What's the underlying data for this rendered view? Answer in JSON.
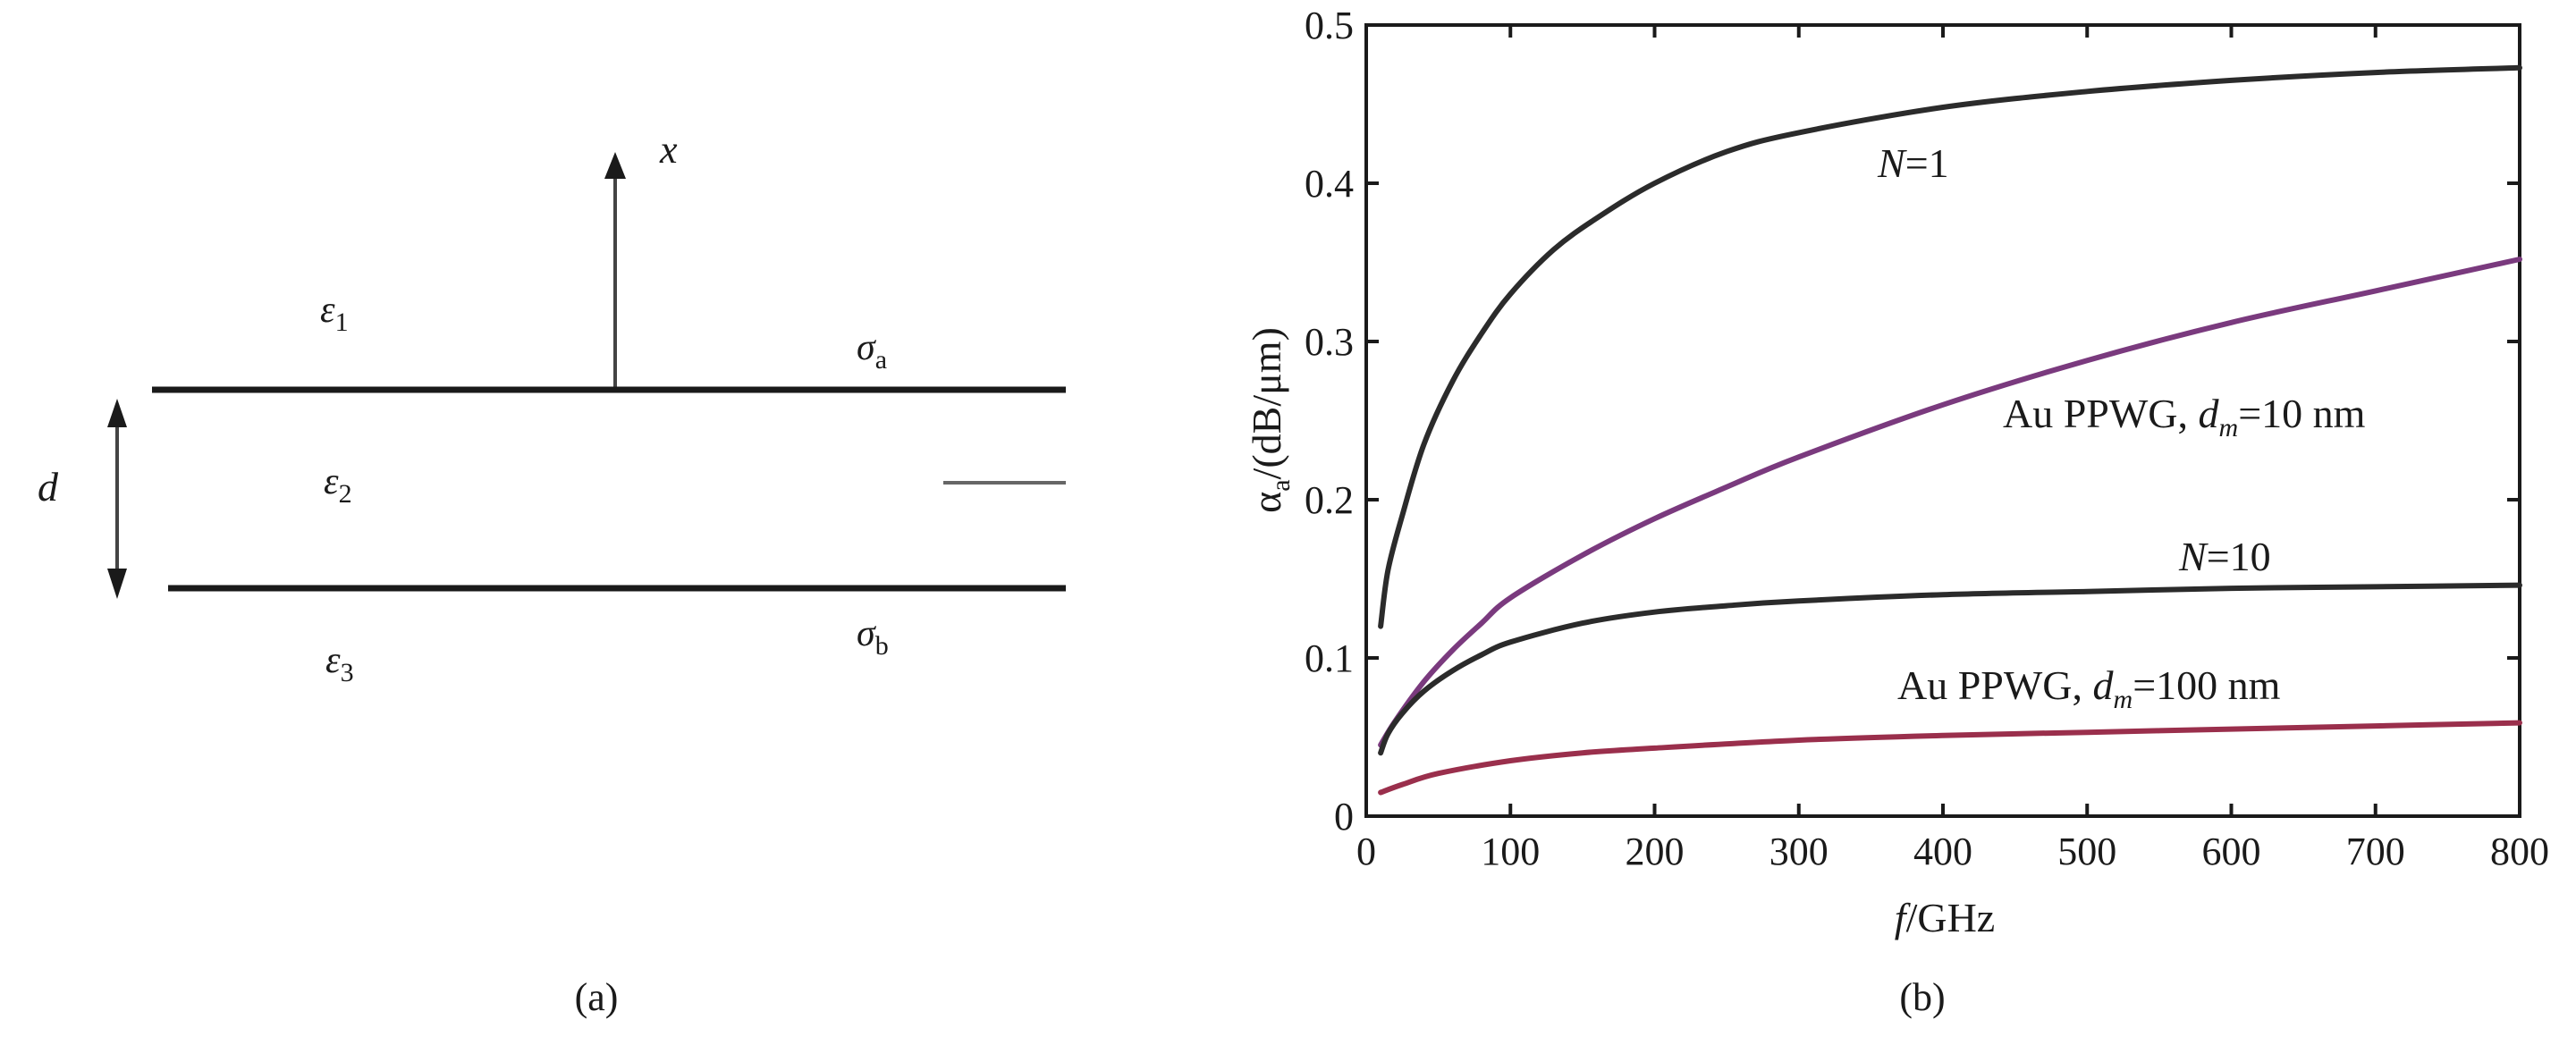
{
  "colors": {
    "ink": "#1a1a1a",
    "series_black": "#2b2b2b",
    "series_purple": "#7a3a7e",
    "series_red": "#9a2f4c",
    "annotation_line": "#666666"
  },
  "panel_a": {
    "caption": "(a)",
    "axis_label": "x",
    "d_label": "d",
    "eps1": {
      "sym": "ε",
      "sub": "1"
    },
    "eps2": {
      "sym": "ε",
      "sub": "2"
    },
    "eps3": {
      "sym": "ε",
      "sub": "3"
    },
    "sigma_a": {
      "sym": "σ",
      "sub": "a"
    },
    "sigma_b": {
      "sym": "σ",
      "sub": "b"
    }
  },
  "panel_b": {
    "caption": "(b)",
    "ylabel": {
      "pre": "α",
      "sub": "a",
      "post": "/(dB/μm)"
    },
    "xlabel": {
      "italic": "f",
      "rest": "/GHz"
    },
    "annotations": {
      "n1": {
        "italic": "N",
        "rest": "=1"
      },
      "au10": {
        "pre": "Au PPWG, ",
        "italic": "d",
        "sub": "m",
        "post": "=10 nm"
      },
      "n10": {
        "italic": "N",
        "rest": "=10"
      },
      "au100": {
        "pre": "Au PPWG, ",
        "italic": "d",
        "sub": "m",
        "post": "=100 nm"
      }
    }
  },
  "chart_data": {
    "type": "line",
    "xlabel": "f /GHz",
    "ylabel": "αa/(dB/μm)",
    "xlim": [
      0,
      800
    ],
    "ylim": [
      0,
      0.5
    ],
    "xticks": [
      "0",
      "100",
      "200",
      "300",
      "400",
      "500",
      "600",
      "700",
      "800"
    ],
    "yticks": [
      "0",
      "0.1",
      "0.2",
      "0.3",
      "0.4",
      "0.5"
    ],
    "grid": false,
    "series": [
      {
        "name": "N=1",
        "color": "black",
        "x": [
          10,
          15,
          25,
          40,
          60,
          80,
          100,
          130,
          160,
          200,
          250,
          300,
          400,
          500,
          600,
          700,
          800
        ],
        "y": [
          0.12,
          0.155,
          0.19,
          0.235,
          0.275,
          0.305,
          0.33,
          0.358,
          0.378,
          0.4,
          0.42,
          0.432,
          0.448,
          0.458,
          0.465,
          0.47,
          0.473
        ]
      },
      {
        "name": "Au PPWG, dm=10 nm",
        "color": "purple",
        "x": [
          10,
          20,
          40,
          60,
          80,
          100,
          150,
          200,
          250,
          300,
          400,
          500,
          600,
          700,
          800
        ],
        "y": [
          0.045,
          0.06,
          0.085,
          0.105,
          0.122,
          0.138,
          0.165,
          0.188,
          0.208,
          0.227,
          0.26,
          0.288,
          0.312,
          0.332,
          0.352
        ]
      },
      {
        "name": "N=10",
        "color": "black",
        "x": [
          10,
          15,
          25,
          40,
          60,
          80,
          100,
          150,
          200,
          250,
          300,
          400,
          500,
          600,
          700,
          800
        ],
        "y": [
          0.04,
          0.052,
          0.065,
          0.079,
          0.092,
          0.102,
          0.11,
          0.122,
          0.129,
          0.133,
          0.136,
          0.14,
          0.142,
          0.144,
          0.145,
          0.146
        ]
      },
      {
        "name": "Au PPWG, dm=100 nm",
        "color": "red",
        "x": [
          10,
          25,
          50,
          100,
          150,
          200,
          300,
          400,
          500,
          600,
          700,
          800
        ],
        "y": [
          0.015,
          0.02,
          0.027,
          0.035,
          0.04,
          0.043,
          0.048,
          0.051,
          0.053,
          0.055,
          0.057,
          0.059
        ]
      }
    ]
  }
}
